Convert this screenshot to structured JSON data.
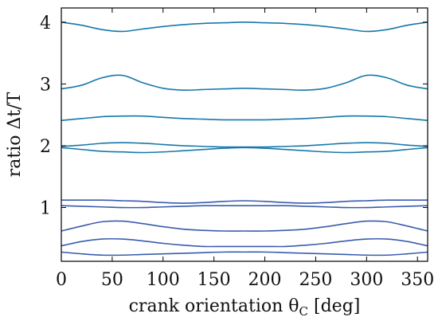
{
  "chart_data": {
    "type": "line",
    "xlabel": "crank orientation θ",
    "xlabel_sub": "C",
    "xlabel_unit": " [deg]",
    "ylabel": "ratio Δt/T",
    "xlim": [
      0,
      360
    ],
    "ylim": [
      0.13,
      4.23
    ],
    "xticks": [
      0,
      50,
      100,
      150,
      200,
      250,
      300,
      350
    ],
    "yticks": [
      1,
      2,
      3,
      4
    ],
    "grid": false,
    "legend": "none",
    "colors": {
      "upper": "#1778aa",
      "lower": "#3a5cad"
    },
    "x": [
      0,
      20,
      40,
      60,
      80,
      100,
      120,
      140,
      160,
      180,
      200,
      220,
      240,
      260,
      280,
      300,
      320,
      340,
      360
    ],
    "series": [
      {
        "group": "upper",
        "values": [
          4.0,
          3.95,
          3.88,
          3.85,
          3.89,
          3.93,
          3.96,
          3.98,
          3.99,
          4.0,
          3.99,
          3.98,
          3.96,
          3.93,
          3.89,
          3.85,
          3.88,
          3.95,
          4.0
        ]
      },
      {
        "group": "upper",
        "values": [
          2.92,
          2.98,
          3.1,
          3.14,
          3.02,
          2.93,
          2.9,
          2.91,
          2.92,
          2.93,
          2.92,
          2.91,
          2.9,
          2.93,
          3.02,
          3.14,
          3.1,
          2.98,
          2.92
        ]
      },
      {
        "group": "upper",
        "values": [
          2.41,
          2.44,
          2.47,
          2.48,
          2.48,
          2.46,
          2.44,
          2.43,
          2.42,
          2.42,
          2.42,
          2.43,
          2.44,
          2.46,
          2.48,
          2.48,
          2.47,
          2.44,
          2.41
        ]
      },
      {
        "group": "upper",
        "values": [
          1.99,
          2.01,
          2.04,
          2.05,
          2.04,
          2.02,
          2.0,
          1.99,
          1.98,
          1.98,
          1.98,
          1.99,
          2.0,
          2.02,
          2.04,
          2.05,
          2.04,
          2.01,
          1.99
        ]
      },
      {
        "group": "upper",
        "values": [
          1.97,
          1.94,
          1.91,
          1.9,
          1.89,
          1.9,
          1.92,
          1.94,
          1.96,
          1.97,
          1.96,
          1.94,
          1.92,
          1.9,
          1.89,
          1.9,
          1.91,
          1.94,
          1.97
        ]
      },
      {
        "group": "lower",
        "values": [
          1.12,
          1.12,
          1.12,
          1.11,
          1.1,
          1.08,
          1.07,
          1.08,
          1.1,
          1.11,
          1.1,
          1.08,
          1.07,
          1.08,
          1.1,
          1.11,
          1.12,
          1.12,
          1.12
        ]
      },
      {
        "group": "lower",
        "values": [
          1.03,
          1.02,
          1.01,
          1.0,
          1.0,
          1.01,
          1.02,
          1.03,
          1.03,
          1.03,
          1.03,
          1.03,
          1.02,
          1.01,
          1.0,
          1.0,
          1.01,
          1.02,
          1.03
        ]
      },
      {
        "group": "lower",
        "values": [
          0.62,
          0.7,
          0.77,
          0.78,
          0.74,
          0.69,
          0.65,
          0.63,
          0.62,
          0.62,
          0.62,
          0.63,
          0.65,
          0.69,
          0.74,
          0.78,
          0.77,
          0.7,
          0.62
        ]
      },
      {
        "group": "lower",
        "values": [
          0.38,
          0.45,
          0.49,
          0.49,
          0.46,
          0.42,
          0.39,
          0.37,
          0.37,
          0.37,
          0.37,
          0.37,
          0.39,
          0.42,
          0.46,
          0.49,
          0.49,
          0.45,
          0.38
        ]
      },
      {
        "group": "lower",
        "values": [
          0.28,
          0.25,
          0.23,
          0.23,
          0.24,
          0.25,
          0.26,
          0.27,
          0.28,
          0.28,
          0.28,
          0.27,
          0.26,
          0.25,
          0.24,
          0.23,
          0.23,
          0.25,
          0.28
        ]
      }
    ]
  }
}
